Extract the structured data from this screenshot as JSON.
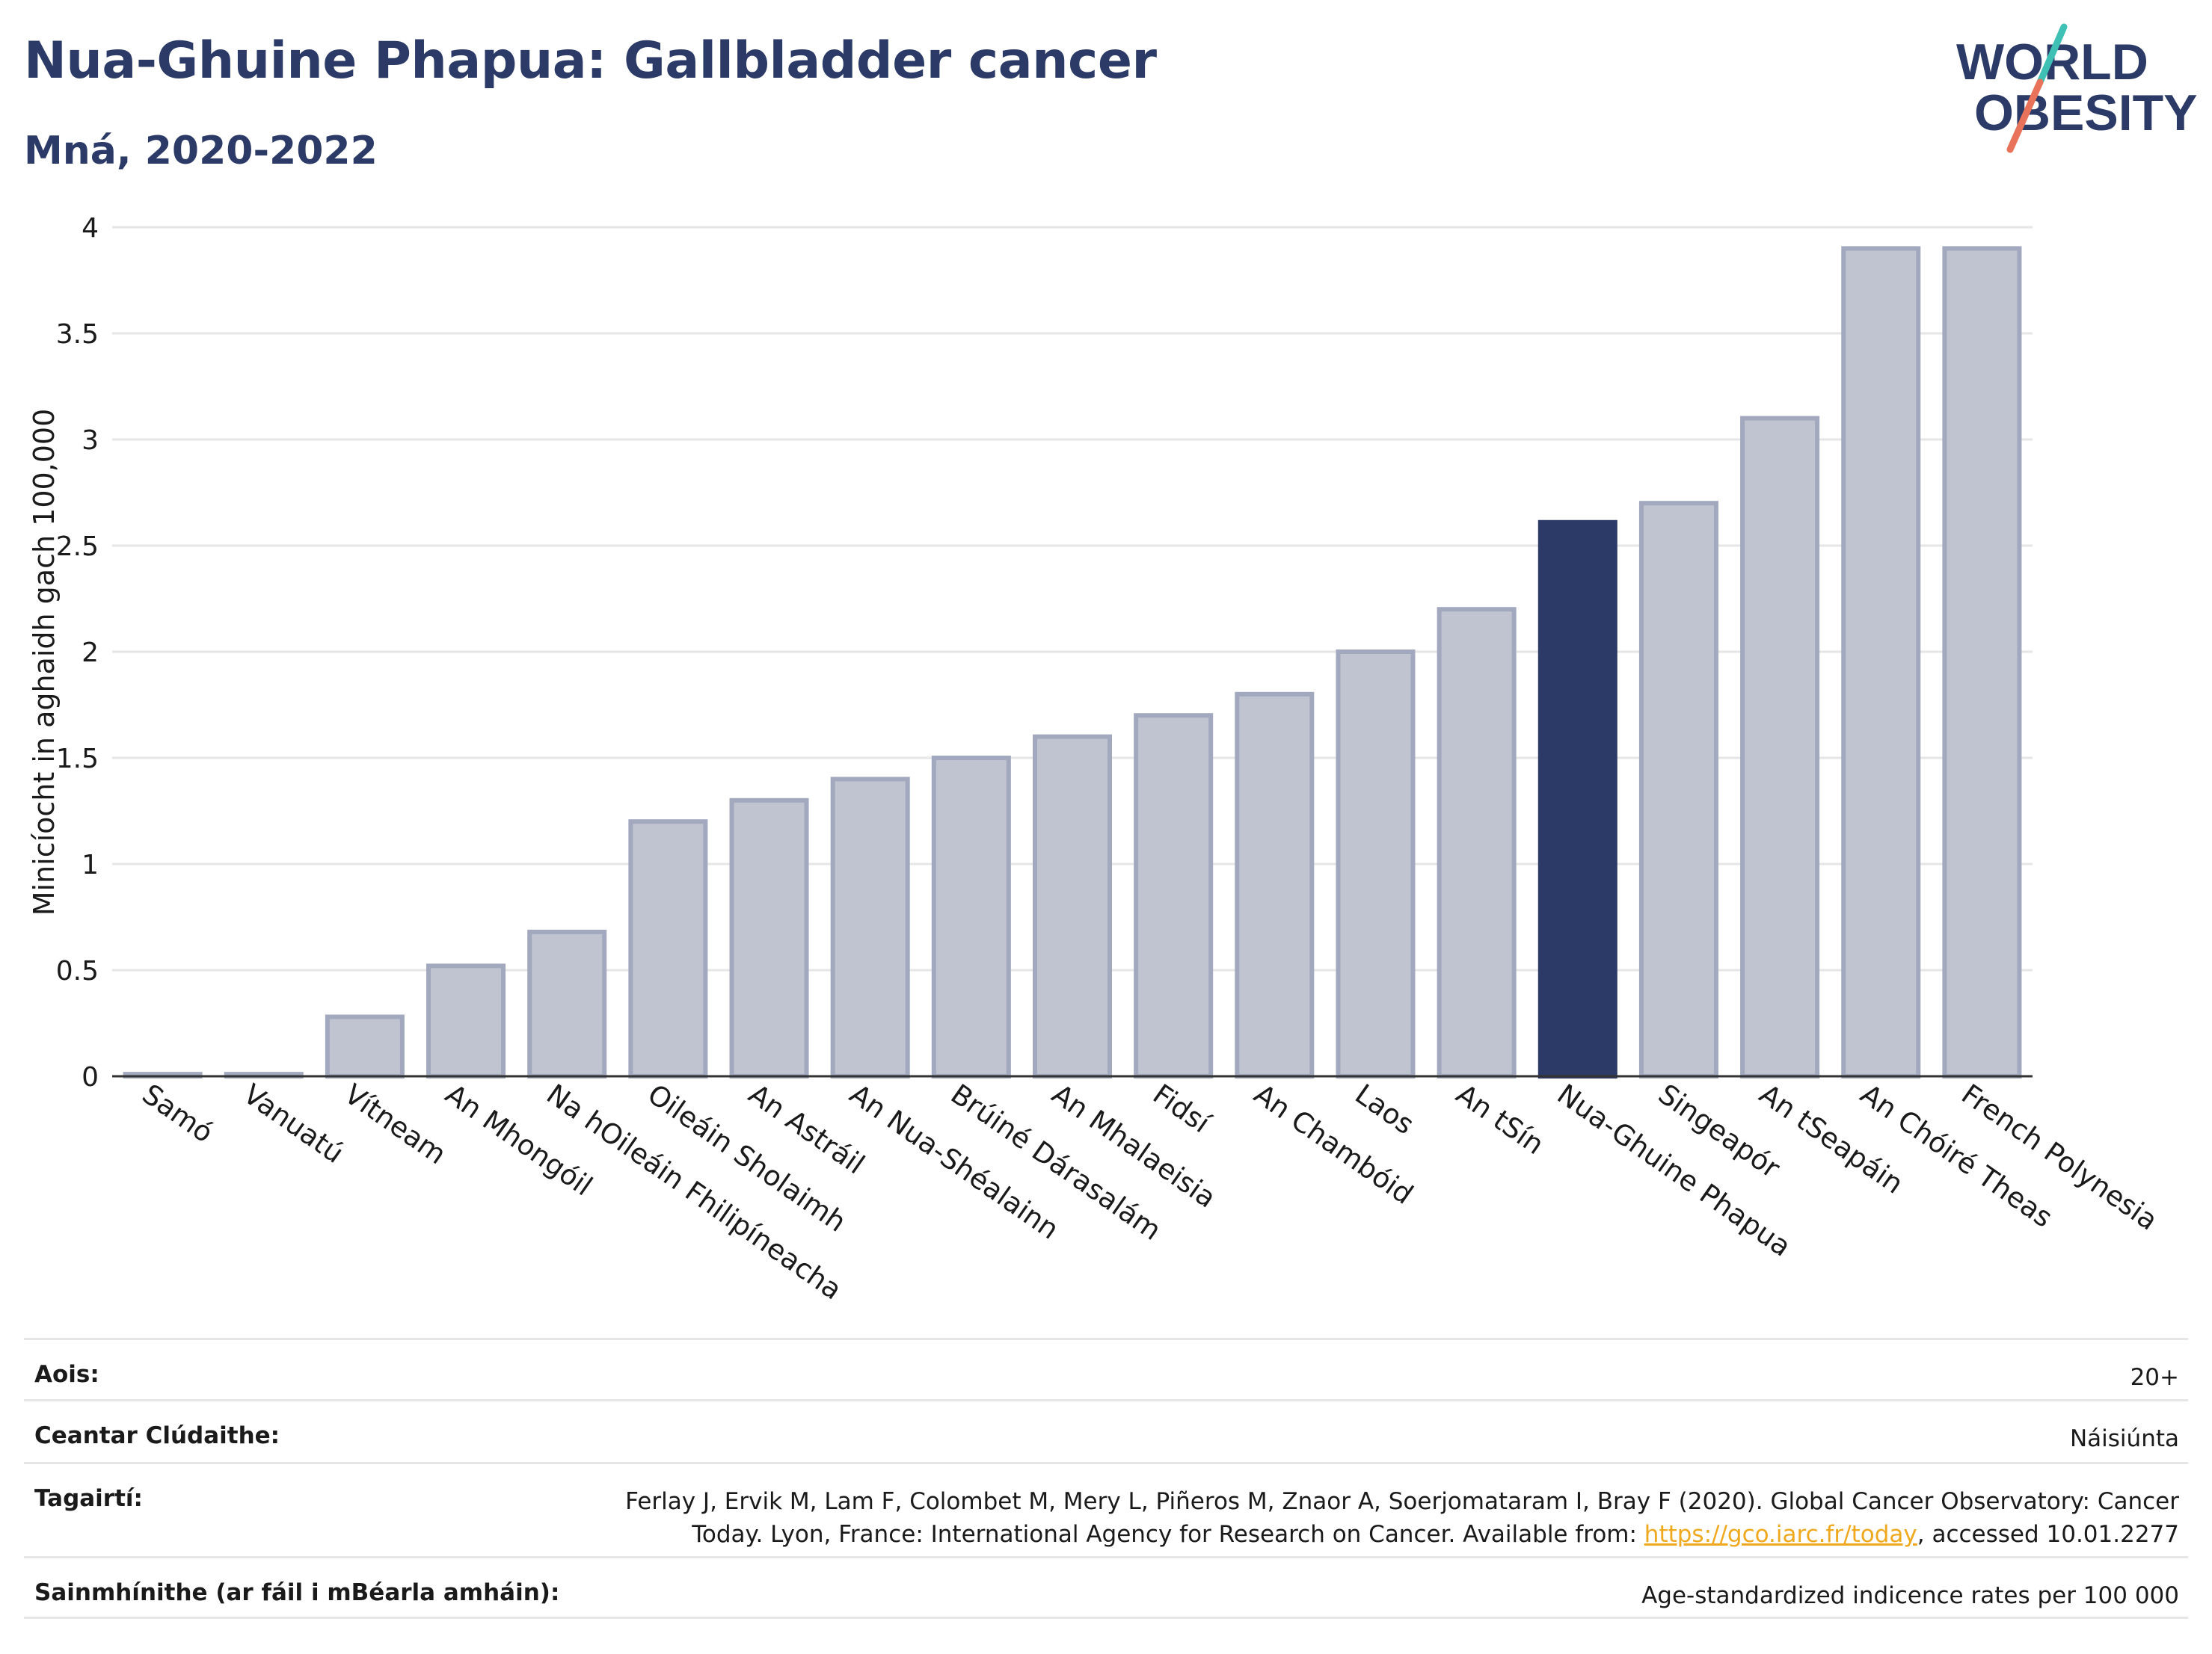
{
  "header": {
    "title": "Nua-Ghuine Phapua: Gallbladder cancer",
    "subtitle": "Mná, 2020-2022"
  },
  "logo": {
    "line1": "WORLD",
    "line2": "OBESITY",
    "icon": "world-obesity-logo"
  },
  "colors": {
    "title": "#2b3a67",
    "highlight_bar": "#2b3a67",
    "other_bar_fill": "#c0c4d0",
    "other_bar_stroke": "#a2a9bf",
    "gridline": "#e6e6e6",
    "link": "#f0a91e",
    "logo_teal": "#3ec1b4",
    "logo_coral": "#e8735a"
  },
  "chart_data": {
    "type": "bar",
    "title": "Nua-Ghuine Phapua: Gallbladder cancer",
    "subtitle": "Mná, 2020-2022",
    "xlabel": "",
    "ylabel": "Minicíocht in aghaidh gach 100,000",
    "ylim": [
      0,
      4
    ],
    "yticks": [
      0,
      0.5,
      1,
      1.5,
      2,
      2.5,
      3,
      3.5,
      4
    ],
    "ytick_labels": [
      "0",
      "0.5",
      "1",
      "1.5",
      "2",
      "2.5",
      "3",
      "3.5",
      "4"
    ],
    "grid": true,
    "highlight": "Nua-Ghuine Phapua",
    "categories": [
      "Samó",
      "Vanuatú",
      "Vítneam",
      "An Mhongóil",
      "Na hOileáin Fhilipíneacha",
      "Oileáin Sholaimh",
      "An Astráil",
      "An Nua-Shéalainn",
      "Brúiné Dárasalám",
      "An Mhalaeisia",
      "Fidsí",
      "An Chambóid",
      "Laos",
      "An tSín",
      "Nua-Ghuine Phapua",
      "Singeapór",
      "An tSeapáin",
      "An Chóiré Theas",
      "French Polynesia"
    ],
    "values": [
      0.01,
      0.01,
      0.28,
      0.52,
      0.68,
      1.2,
      1.3,
      1.4,
      1.5,
      1.6,
      1.7,
      1.8,
      2.0,
      2.2,
      2.61,
      2.7,
      3.1,
      3.9,
      3.9
    ]
  },
  "meta": {
    "age_label": "Aois:",
    "age_value": "20+",
    "area_label": "Ceantar Clúdaithe:",
    "area_value": "Náisiúnta",
    "ref_label": "Tagairtí:",
    "ref_line1": "Ferlay J, Ervik M, Lam F, Colombet M, Mery L, Piñeros M, Znaor A, Soerjomataram I, Bray F (2020). Global Cancer Observatory: Cancer",
    "ref_line2_pre": "Today. Lyon, France: International Agency for Research on Cancer. Available from: ",
    "ref_link": "https://gco.iarc.fr/today",
    "ref_line2_post": ", accessed 10.01.2277",
    "def_label": "Sainmhínithe (ar fáil i mBéarla amháin):",
    "def_value": "Age-standardized indicence rates per 100 000"
  }
}
